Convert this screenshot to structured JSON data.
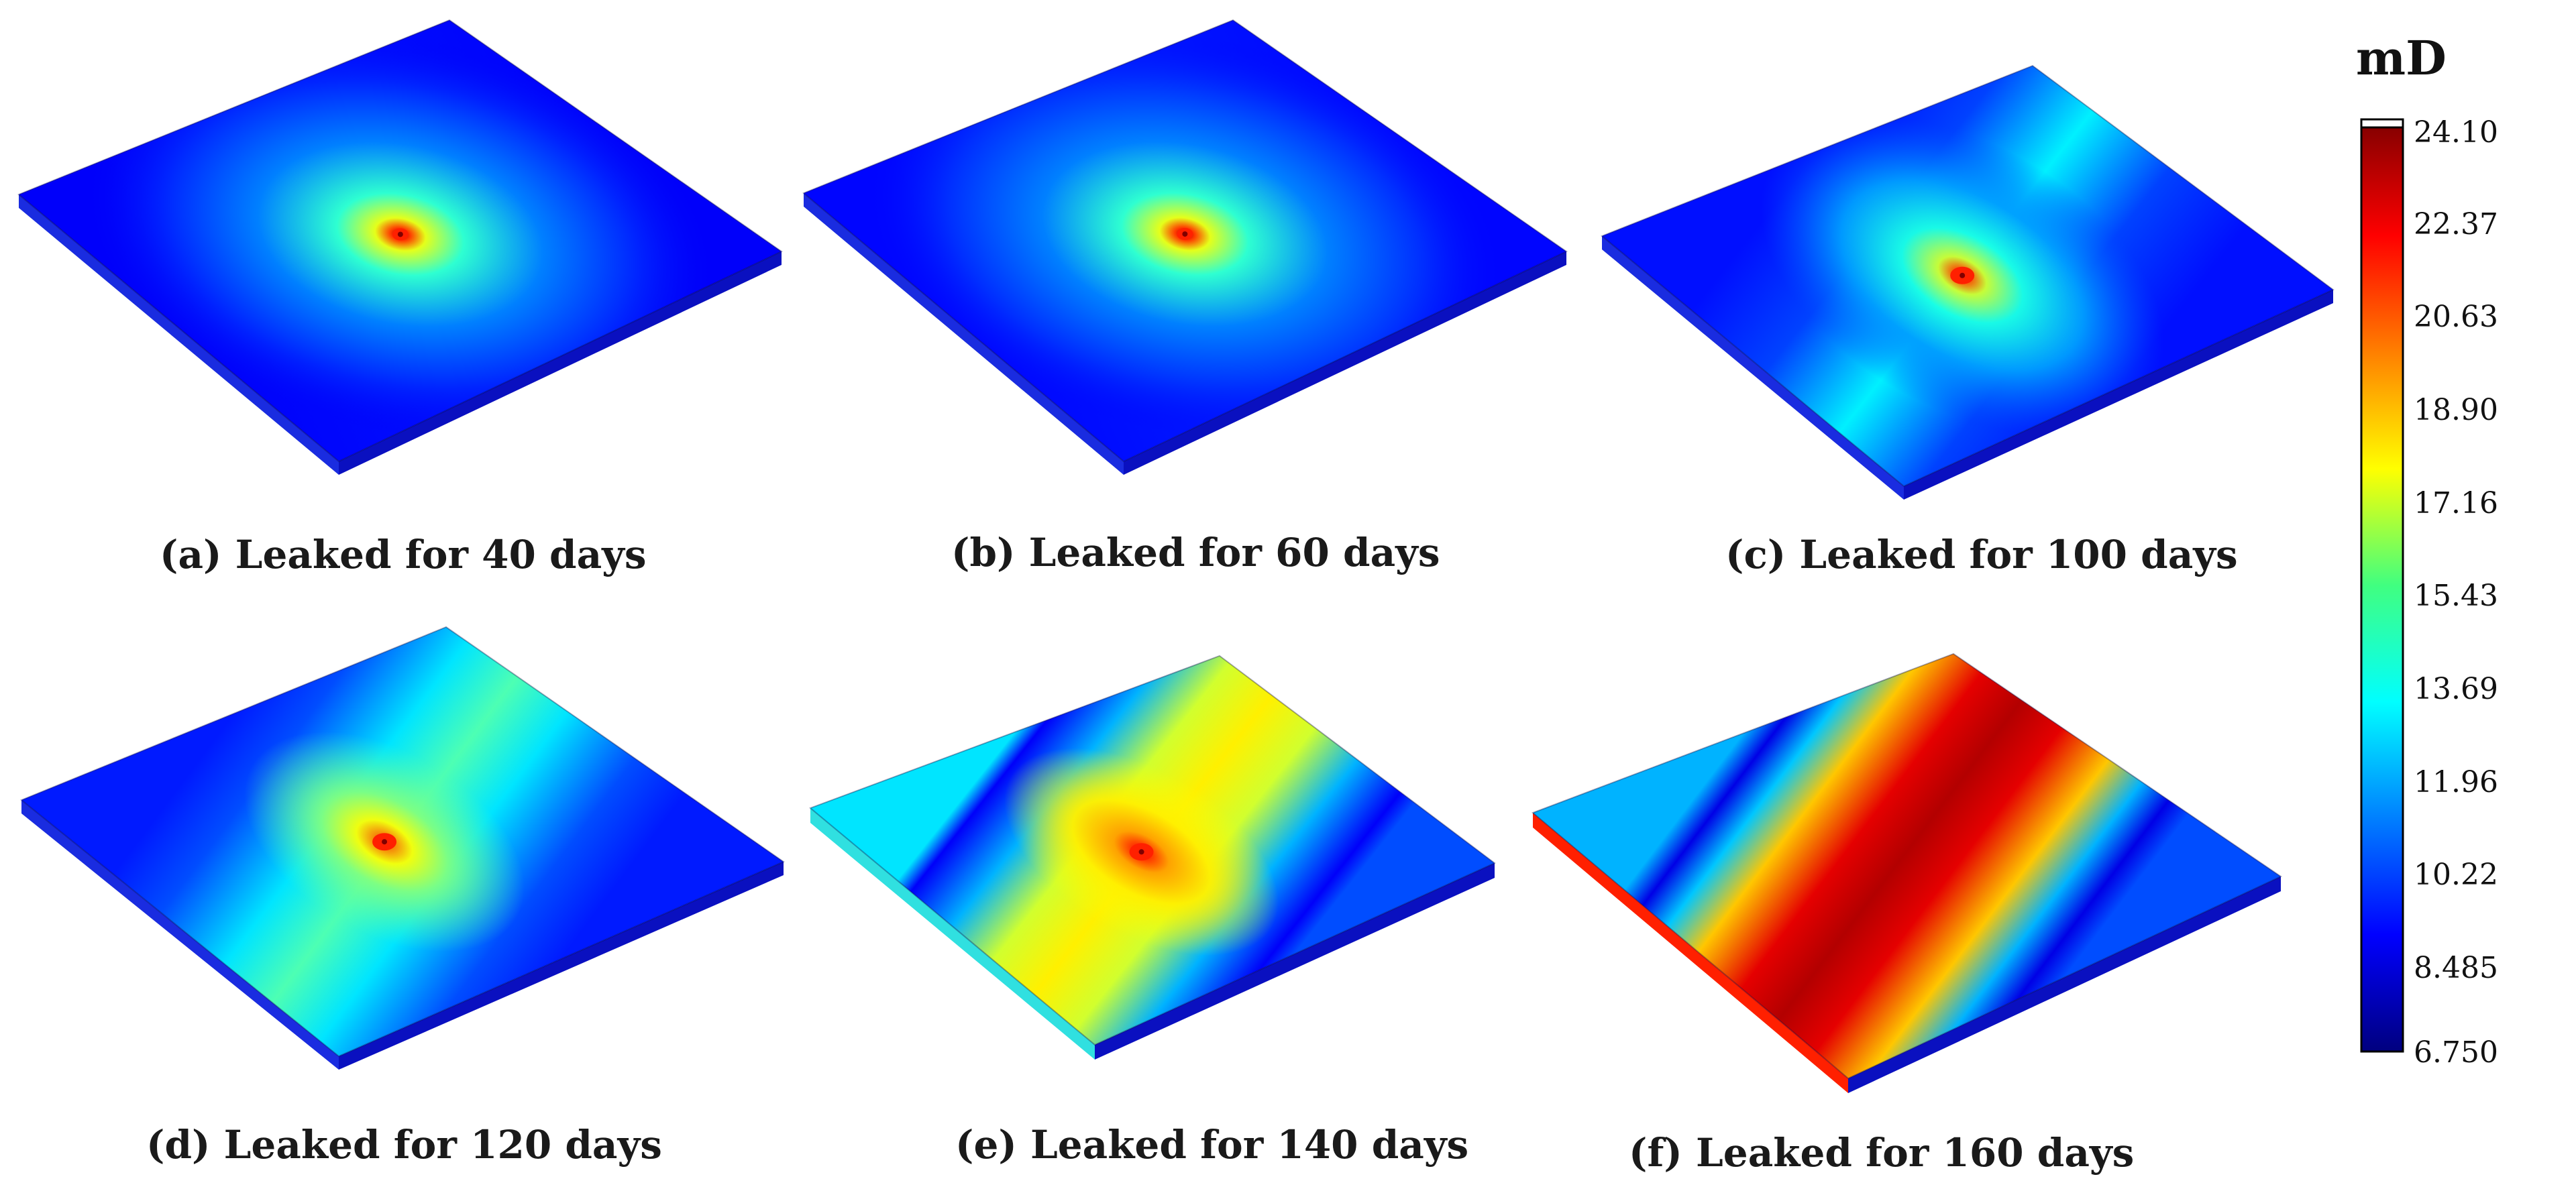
{
  "panels": [
    {
      "caption": "(a) Leaked for 40 days",
      "days": 40,
      "pattern": "radial",
      "hot_size": 0.08,
      "peak_level": 1.0,
      "ambient": 0.12
    },
    {
      "caption": "(b) Leaked for 60 days",
      "days": 60,
      "pattern": "radial",
      "hot_size": 0.1,
      "peak_level": 1.0,
      "ambient": 0.13
    },
    {
      "caption": "(c) Leaked for 100 days",
      "days": 100,
      "pattern": "stretched",
      "hot_size": 0.18,
      "peak_level": 1.0,
      "ambient": 0.14
    },
    {
      "caption": "(d) Leaked for 120 days",
      "days": 120,
      "pattern": "band",
      "hot_size": 0.25,
      "peak_level": 1.0,
      "ambient": 0.15
    },
    {
      "caption": "(e) Leaked for 140 days",
      "days": 140,
      "pattern": "band-wide",
      "hot_size": 0.35,
      "peak_level": 1.0,
      "ambient": 0.12
    },
    {
      "caption": "(f) Leaked for 160 days",
      "days": 160,
      "pattern": "stripes",
      "hot_size": 0.5,
      "peak_level": 0.88,
      "ambient": 0.1
    }
  ],
  "colorbar": {
    "unit": "mD",
    "ticks": [
      "24.10",
      "22.37",
      "20.63",
      "18.90",
      "17.16",
      "15.43",
      "13.69",
      "11.96",
      "10.22",
      "8.485",
      "6.750"
    ],
    "min": 6.75,
    "max": 24.1,
    "colormap": "jet"
  }
}
